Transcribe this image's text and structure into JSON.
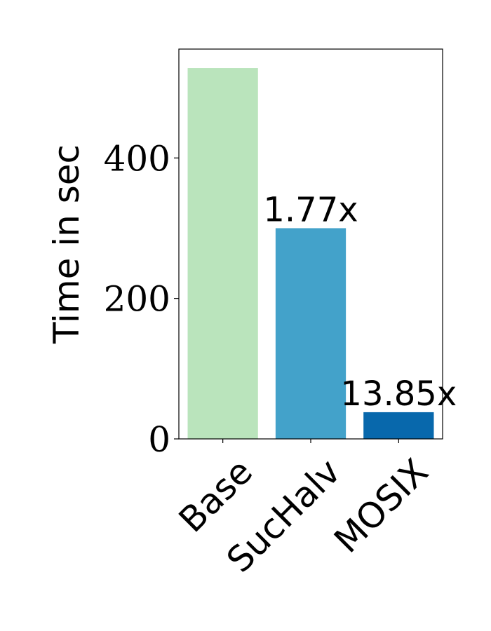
{
  "chart_data": {
    "type": "bar",
    "categories": [
      "Base",
      "SucHalv",
      "MOSIX"
    ],
    "values": [
      528,
      300,
      38
    ],
    "bar_labels": [
      "",
      "1.77x",
      "13.85x"
    ],
    "colors": [
      "#bae4bc",
      "#43a2ca",
      "#0868ac"
    ],
    "title": "",
    "xlabel": "",
    "ylabel": "Time in sec",
    "ylim": [
      0,
      555
    ],
    "yticks": [
      0,
      200,
      400
    ],
    "grid": false,
    "legend": "none"
  }
}
